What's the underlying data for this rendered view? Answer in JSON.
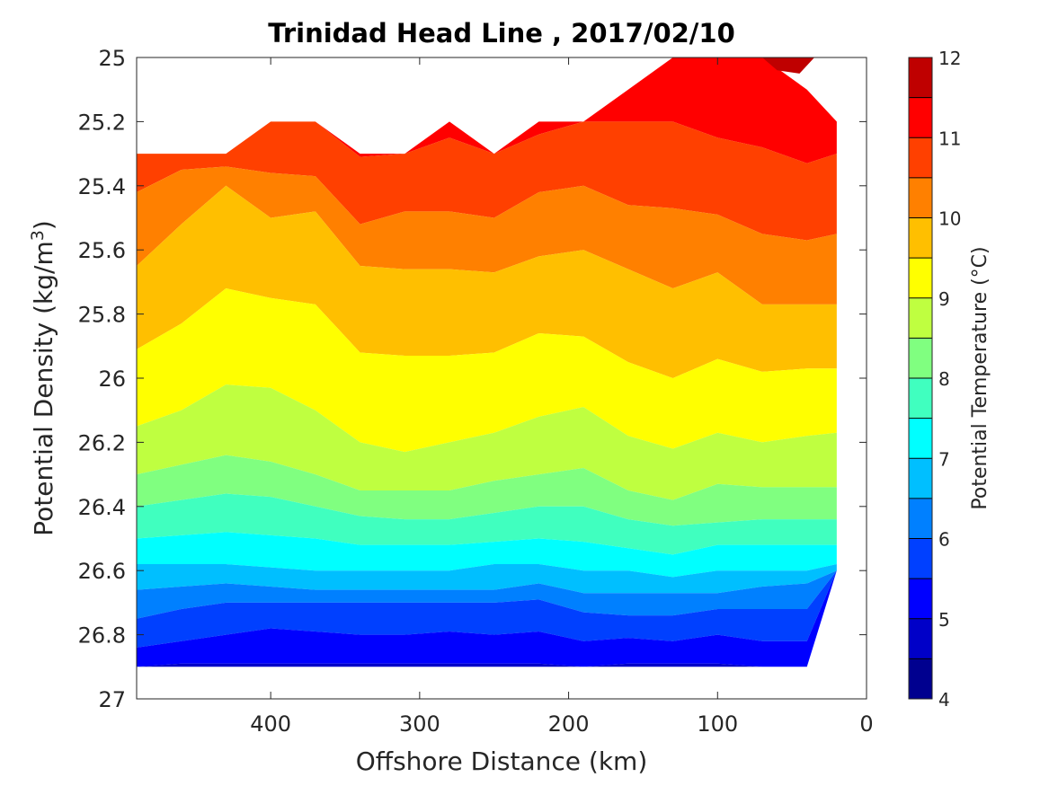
{
  "chart_data": {
    "type": "contour",
    "title": "Trinidad Head Line , 2017/02/10",
    "xlabel": "Offshore Distance (km)",
    "ylabel_prefix": "Potential Density (kg/m",
    "ylabel_sup": "3",
    "ylabel_suffix": ")",
    "colorbar_label": "Potential Temperature (°C)",
    "xlim": [
      490,
      0
    ],
    "ylim": [
      27,
      25
    ],
    "y_reversed": true,
    "x_reversed": true,
    "x_ticks": [
      400,
      300,
      200,
      100,
      0
    ],
    "x_tick_labels": [
      "400",
      "300",
      "200",
      "100",
      "0"
    ],
    "y_ticks": [
      25,
      25.2,
      25.4,
      25.6,
      25.8,
      26,
      26.2,
      26.4,
      26.6,
      26.8,
      27
    ],
    "y_tick_labels": [
      "25",
      "25.2",
      "25.4",
      "25.6",
      "25.8",
      "26",
      "26.2",
      "26.4",
      "26.6",
      "26.8",
      "27"
    ],
    "colorbar_ticks": [
      4,
      5,
      6,
      7,
      8,
      9,
      10,
      11,
      12
    ],
    "colorbar_tick_labels": [
      "4",
      "5",
      "6",
      "7",
      "8",
      "9",
      "10",
      "11",
      "12"
    ],
    "levels": [
      4,
      4.5,
      5,
      5.5,
      6,
      6.5,
      7,
      7.5,
      8,
      8.5,
      9,
      9.5,
      10,
      10.5,
      11,
      11.5,
      12
    ],
    "level_colors": [
      "#00008f",
      "#0000c8",
      "#0000ff",
      "#0040ff",
      "#0080ff",
      "#00bfff",
      "#00ffff",
      "#40ffbf",
      "#80ff80",
      "#bfff40",
      "#ffff00",
      "#ffbf00",
      "#ff8000",
      "#ff4000",
      "#ff0000",
      "#bf0000"
    ],
    "grid": false,
    "x": [
      490,
      460,
      430,
      400,
      370,
      340,
      310,
      280,
      250,
      220,
      190,
      160,
      130,
      100,
      70,
      40,
      20
    ],
    "top_density": [
      25.3,
      25.3,
      25.3,
      25.2,
      25.2,
      25.3,
      25.3,
      25.2,
      25.3,
      25.2,
      25.2,
      25.1,
      25.0,
      25.0,
      25.0,
      25.1,
      25.2
    ],
    "bottom_density": [
      26.9,
      26.9,
      26.9,
      26.9,
      26.9,
      26.9,
      26.9,
      26.9,
      26.9,
      26.9,
      26.9,
      26.9,
      26.9,
      26.9,
      26.9,
      26.9,
      26.6
    ],
    "isopycnal_depth_of_isotherms": {
      "isotherm_values": [
        11,
        10.5,
        10,
        9.5,
        9,
        8.5,
        8,
        7.5,
        7,
        6.5,
        6,
        5.5,
        5
      ],
      "rows": [
        [
          25.3,
          25.42,
          25.65,
          25.91,
          26.15,
          26.3,
          26.4,
          26.5,
          26.58,
          26.66,
          26.75,
          26.84,
          26.9
        ],
        [
          25.3,
          25.35,
          25.52,
          25.83,
          26.1,
          26.27,
          26.38,
          26.49,
          26.58,
          26.65,
          26.72,
          26.82,
          26.89
        ],
        [
          25.3,
          25.34,
          25.4,
          25.72,
          26.02,
          26.24,
          26.36,
          26.48,
          26.58,
          26.64,
          26.7,
          26.8,
          26.89
        ],
        [
          25.2,
          25.36,
          25.5,
          25.75,
          26.03,
          26.26,
          26.37,
          26.49,
          26.59,
          26.65,
          26.7,
          26.78,
          26.89
        ],
        [
          25.2,
          25.37,
          25.48,
          25.77,
          26.1,
          26.3,
          26.4,
          26.5,
          26.6,
          26.66,
          26.7,
          26.79,
          26.89
        ],
        [
          25.31,
          25.52,
          25.65,
          25.92,
          26.2,
          26.35,
          26.43,
          26.52,
          26.6,
          26.66,
          26.7,
          26.8,
          26.89
        ],
        [
          25.3,
          25.48,
          25.66,
          25.93,
          26.23,
          26.35,
          26.44,
          26.52,
          26.6,
          26.66,
          26.7,
          26.8,
          26.89
        ],
        [
          25.25,
          25.48,
          25.66,
          25.93,
          26.2,
          26.35,
          26.44,
          26.52,
          26.6,
          26.66,
          26.7,
          26.79,
          26.89
        ],
        [
          25.3,
          25.5,
          25.67,
          25.92,
          26.17,
          26.32,
          26.42,
          26.51,
          26.58,
          26.66,
          26.7,
          26.8,
          26.89
        ],
        [
          25.24,
          25.42,
          25.62,
          25.86,
          26.12,
          26.3,
          26.4,
          26.5,
          26.58,
          26.64,
          26.69,
          26.79,
          26.89
        ],
        [
          25.2,
          25.4,
          25.6,
          25.87,
          26.09,
          26.28,
          26.4,
          26.51,
          26.6,
          26.67,
          26.73,
          26.82,
          26.9
        ],
        [
          25.2,
          25.46,
          25.66,
          25.95,
          26.18,
          26.35,
          26.44,
          26.53,
          26.6,
          26.67,
          26.74,
          26.81,
          26.89
        ],
        [
          25.2,
          25.47,
          25.72,
          26.0,
          26.22,
          26.38,
          26.46,
          26.55,
          26.62,
          26.67,
          26.74,
          26.82,
          26.89
        ],
        [
          25.25,
          25.49,
          25.67,
          25.94,
          26.17,
          26.33,
          26.45,
          26.52,
          26.6,
          26.67,
          26.72,
          26.8,
          26.89
        ],
        [
          25.28,
          25.55,
          25.77,
          25.98,
          26.2,
          26.34,
          26.44,
          26.52,
          26.6,
          26.65,
          26.72,
          26.82,
          26.9
        ],
        [
          25.33,
          25.57,
          25.77,
          25.97,
          26.18,
          26.34,
          26.44,
          26.52,
          26.6,
          26.64,
          26.72,
          26.82,
          26.9
        ],
        [
          25.3,
          25.55,
          25.77,
          25.97,
          26.17,
          26.34,
          26.44,
          26.52,
          26.58,
          26.6,
          26.6,
          26.6,
          26.6
        ]
      ]
    },
    "warm_core": {
      "isotherm_value": 11.5,
      "points": [
        [
          70,
          25.0
        ],
        [
          60,
          25.04
        ],
        [
          45,
          25.05
        ],
        [
          35,
          25.0
        ]
      ]
    }
  }
}
